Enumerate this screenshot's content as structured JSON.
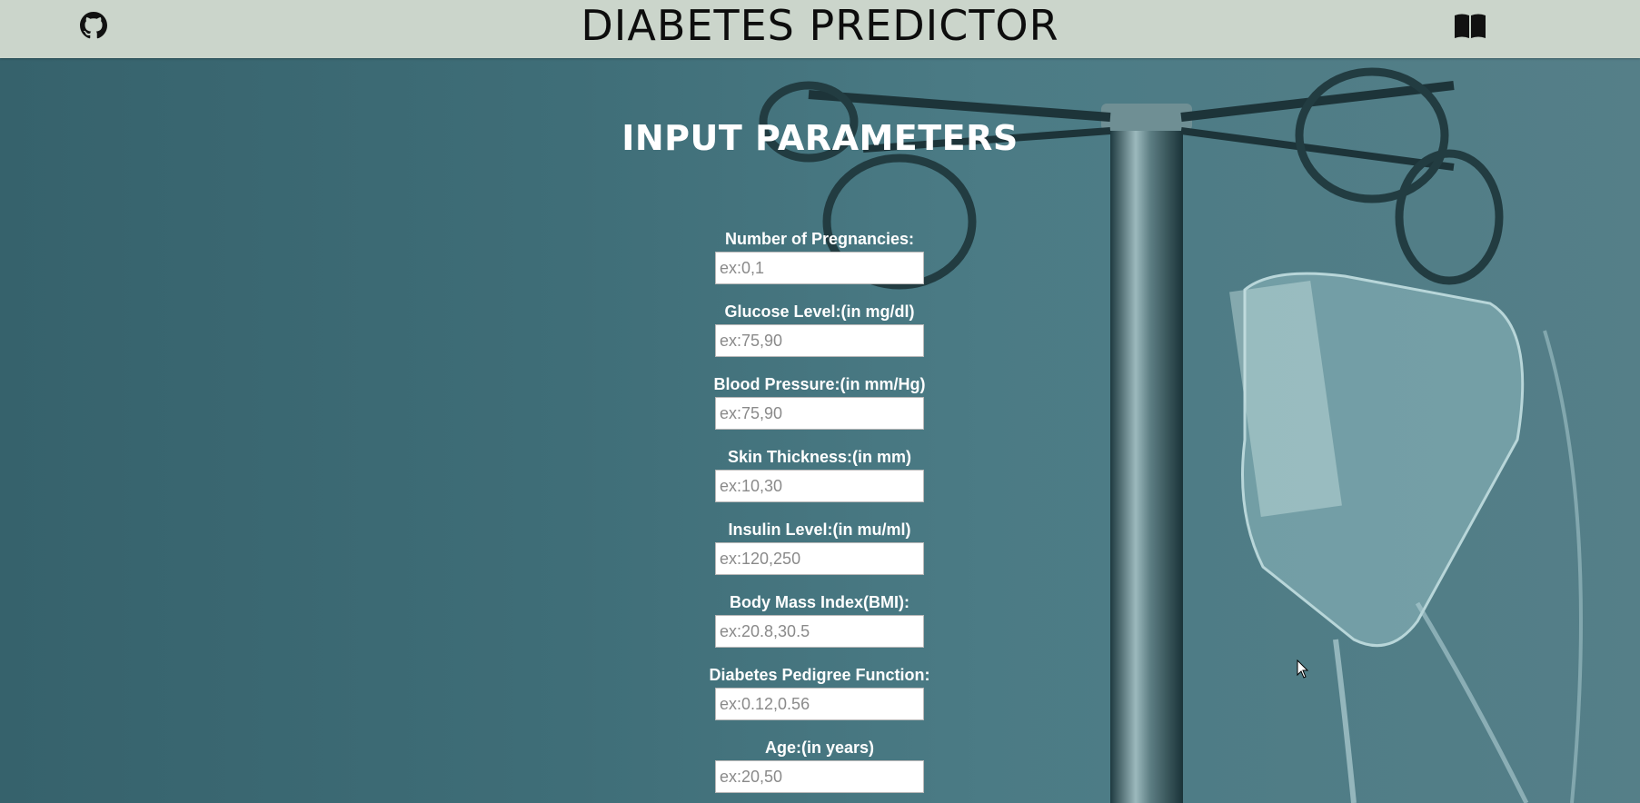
{
  "header": {
    "title": "DIABETES PREDICTOR",
    "left_icon": "github-icon",
    "right_icon": "book-icon"
  },
  "main": {
    "section_title": "INPUT PARAMETERS",
    "fields": [
      {
        "label": "Number of Pregnancies:",
        "placeholder": "ex:0,1",
        "value": ""
      },
      {
        "label": "Glucose Level:(in mg/dl)",
        "placeholder": "ex:75,90",
        "value": ""
      },
      {
        "label": "Blood Pressure:(in mm/Hg)",
        "placeholder": "ex:75,90",
        "value": ""
      },
      {
        "label": "Skin Thickness:(in mm)",
        "placeholder": "ex:10,30",
        "value": ""
      },
      {
        "label": "Insulin Level:(in mu/ml)",
        "placeholder": "ex:120,250",
        "value": ""
      },
      {
        "label": "Body Mass Index(BMI):",
        "placeholder": "ex:20.8,30.5",
        "value": ""
      },
      {
        "label": "Diabetes Pedigree Function:",
        "placeholder": "ex:0.12,0.56",
        "value": ""
      },
      {
        "label": "Age:(in years)",
        "placeholder": "ex:20,50",
        "value": ""
      }
    ]
  },
  "colors": {
    "navbar_bg": "#cbd5cb",
    "page_bg": "#3f6e78",
    "title_text": "#ffffff"
  }
}
